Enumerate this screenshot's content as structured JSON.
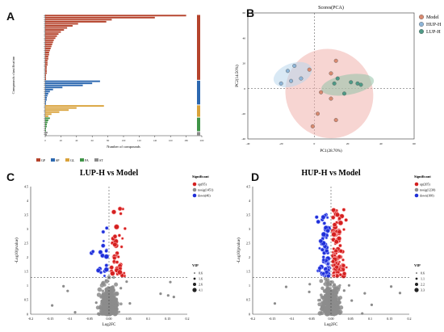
{
  "panels": {
    "a": {
      "letter": "A"
    },
    "b": {
      "letter": "B"
    },
    "c": {
      "letter": "C"
    },
    "d": {
      "letter": "D"
    }
  },
  "chart_data": [
    {
      "id": "A",
      "type": "bar",
      "orientation": "horizontal",
      "xlabel": "Number of compounds",
      "ylabel": "Compounds classification",
      "xlim": [
        0,
        200
      ],
      "legend": [
        "GP",
        "SP",
        "GL",
        "FA",
        "ST"
      ],
      "colors": {
        "GP": "#b5432c",
        "SP": "#2c68b0",
        "GL": "#d9a23a",
        "FA": "#3f9447",
        "ST": "#8a8a8a"
      },
      "groups": [
        {
          "class": "GP",
          "values": [
            180,
            140,
            85,
            78,
            42,
            35,
            28,
            24,
            20,
            17,
            15,
            13,
            11,
            10,
            9,
            8,
            7,
            6,
            5,
            5,
            4,
            4,
            3,
            3,
            3,
            2,
            2,
            2,
            2,
            1,
            1,
            1
          ]
        },
        {
          "class": "SP",
          "values": [
            70,
            60,
            48,
            22,
            10,
            6,
            4,
            3,
            2,
            2,
            1,
            1
          ]
        },
        {
          "class": "GL",
          "values": [
            75,
            40,
            30,
            18,
            8,
            4
          ]
        },
        {
          "class": "FA",
          "values": [
            6,
            4,
            3,
            2,
            2,
            1,
            1
          ]
        },
        {
          "class": "ST",
          "values": [
            3,
            2
          ]
        }
      ]
    },
    {
      "id": "B",
      "type": "scatter",
      "title": "Scores(PCA)",
      "xlabel": "PC1(28.70%)",
      "ylabel": "PC2(14.50%)",
      "xlim": [
        -40,
        60
      ],
      "ylim": [
        -40,
        60
      ],
      "legend_position": "top-right",
      "series": [
        {
          "name": "Model",
          "color": "#d98a70",
          "points": [
            [
              13,
              22
            ],
            [
              10,
              12
            ],
            [
              -3,
              15
            ],
            [
              4,
              -3
            ],
            [
              10,
              -8
            ],
            [
              -1,
              -30
            ],
            [
              2,
              -20
            ],
            [
              13,
              -25
            ]
          ]
        },
        {
          "name": "HUP-H",
          "color": "#8eb5d8",
          "points": [
            [
              -12,
              18
            ],
            [
              -8,
              8
            ],
            [
              -14,
              6
            ],
            [
              -20,
              4
            ],
            [
              -16,
              14
            ]
          ]
        },
        {
          "name": "LUP-H",
          "color": "#4e9a86",
          "points": [
            [
              14,
              8
            ],
            [
              12,
              4
            ],
            [
              22,
              5
            ],
            [
              26,
              4
            ],
            [
              18,
              -4
            ],
            [
              28,
              3
            ]
          ]
        }
      ]
    },
    {
      "id": "C",
      "type": "scatter",
      "title": "LUP-H vs Model",
      "xlabel": "Log2FC",
      "ylabel": "-Log10(pvalue)",
      "xlim": [
        -0.2,
        0.2
      ],
      "ylim": [
        0,
        4.5
      ],
      "legend": {
        "title": "Significant",
        "items": [
          "up(95)",
          "nosig(1451)",
          "down(46)"
        ]
      },
      "size_legend": {
        "title": "VIP",
        "items": [
          "0.6",
          "1.6",
          "2.6",
          "4.1"
        ]
      }
    },
    {
      "id": "D",
      "type": "scatter",
      "title": "HUP-H vs Model",
      "xlabel": "Log2FC",
      "ylabel": "-Log10(pvalue)",
      "xlim": [
        -0.2,
        0.2
      ],
      "ylim": [
        0,
        4.5
      ],
      "legend": {
        "title": "Significant",
        "items": [
          "up(205)",
          "nosig(1230)",
          "down(100)"
        ]
      },
      "size_legend": {
        "title": "VIP",
        "items": [
          "0.6",
          "1.1",
          "2.2",
          "3.3"
        ]
      }
    }
  ]
}
